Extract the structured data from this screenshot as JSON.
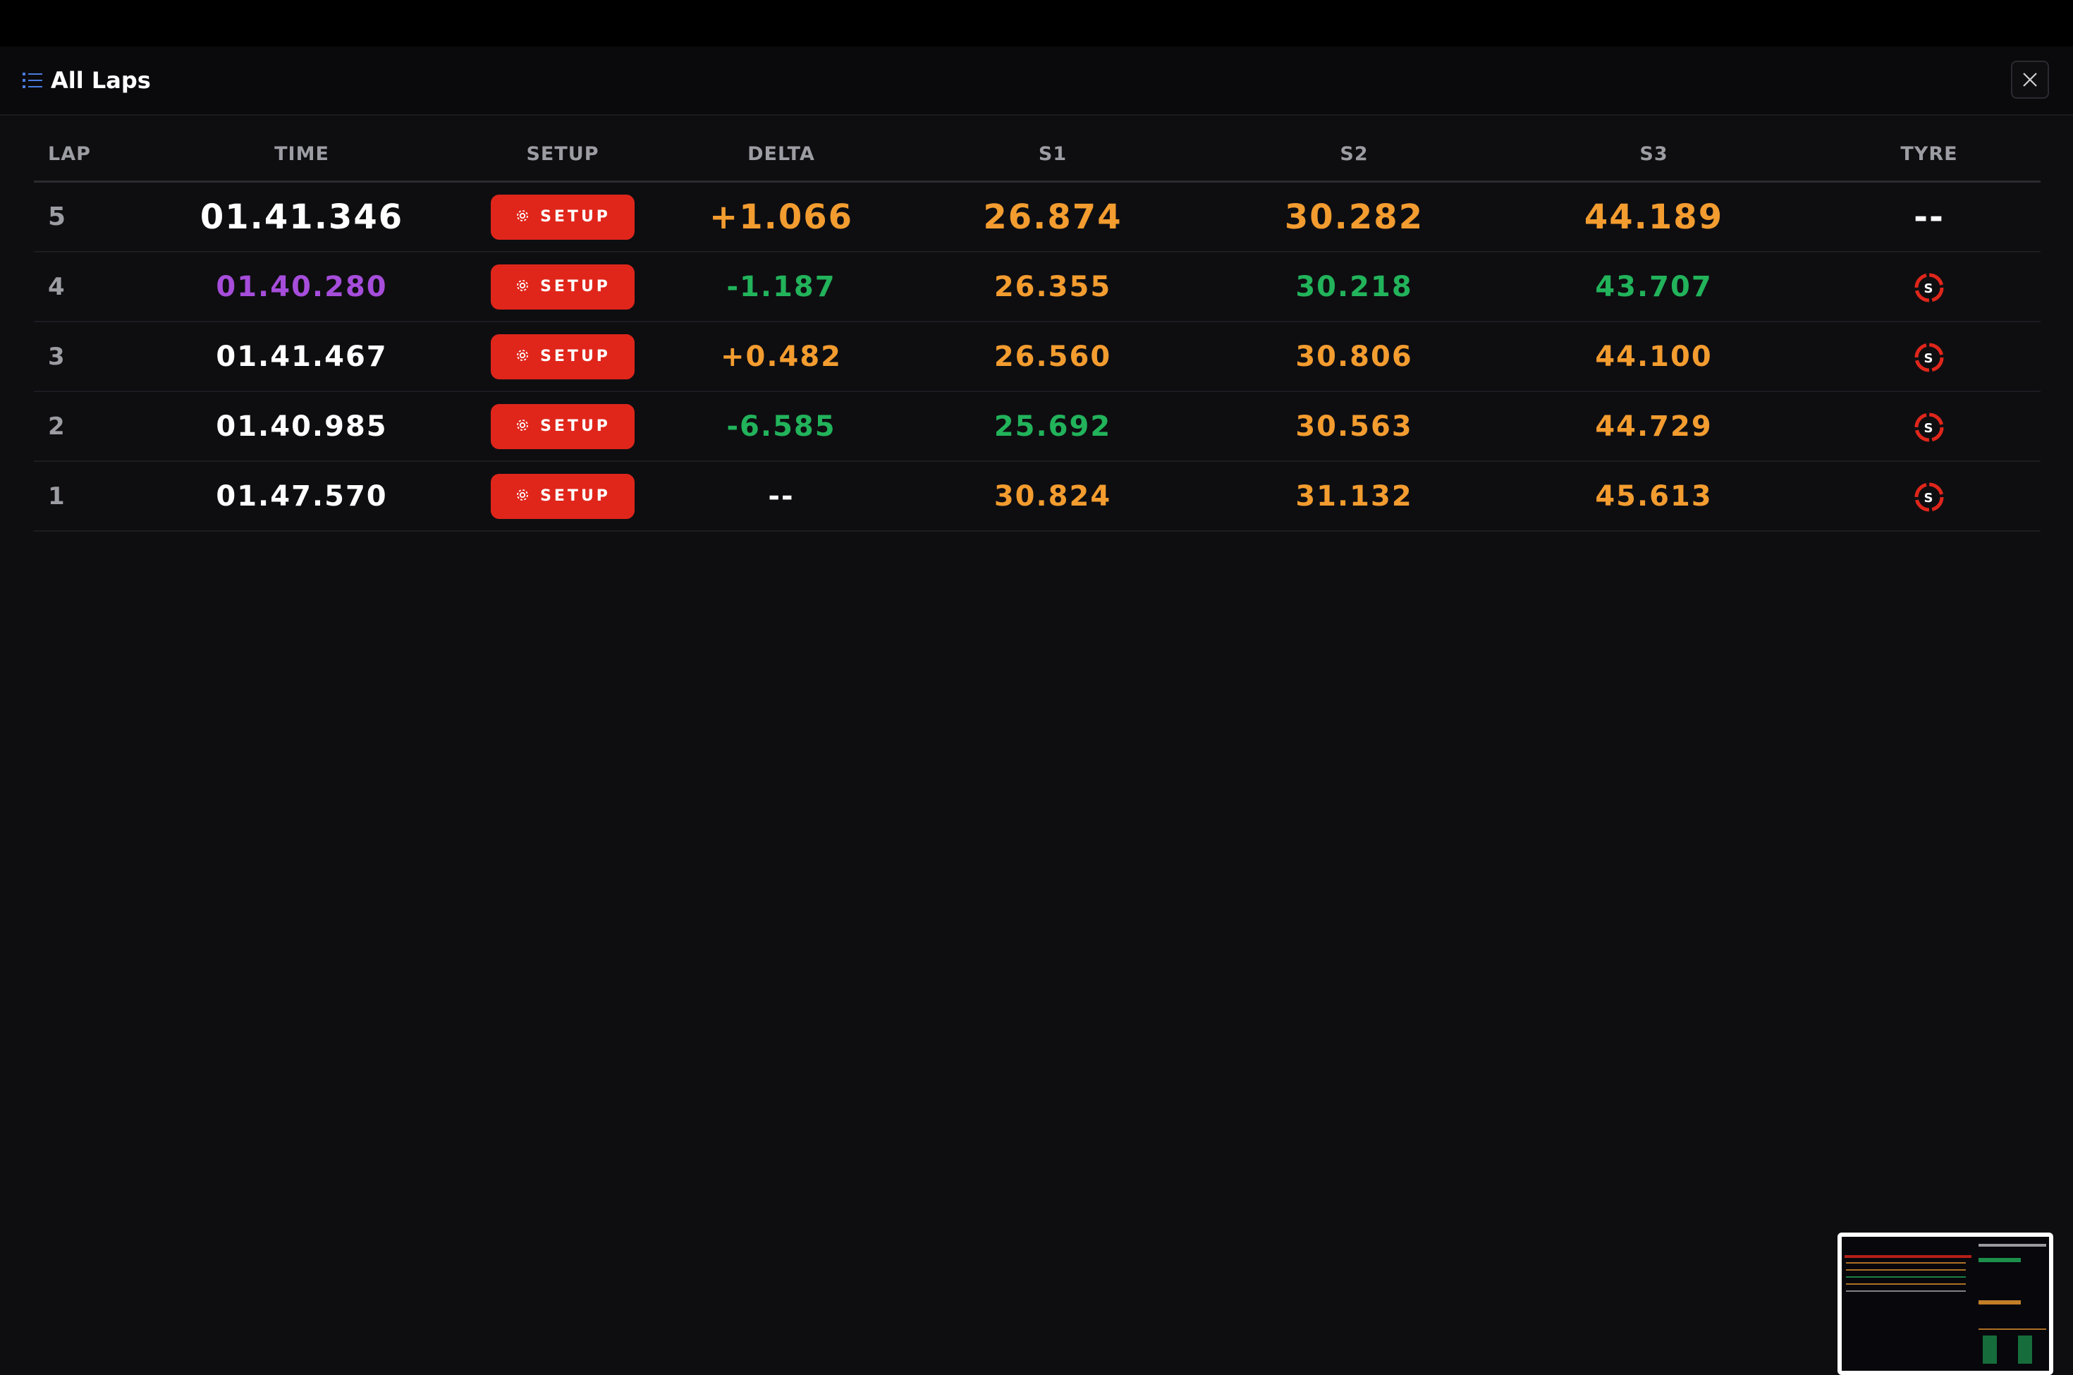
{
  "header": {
    "title": "All Laps"
  },
  "colors": {
    "accent_red": "#e0261b",
    "orange": "#f39c2f",
    "green": "#22b35b",
    "purple": "#a64ddb",
    "white": "#ffffff",
    "muted": "#9c9ca3"
  },
  "table": {
    "columns": [
      "LAP",
      "TIME",
      "SETUP",
      "DELTA",
      "S1",
      "S2",
      "S3",
      "TYRE"
    ],
    "setup_label": "SETUP",
    "rows": [
      {
        "lap": "5",
        "time": "01.41.346",
        "time_color": "#ffffff",
        "delta": "+1.066",
        "delta_color": "#f39c2f",
        "s1": "26.874",
        "s1_color": "#f39c2f",
        "s2": "30.282",
        "s2_color": "#f39c2f",
        "s3": "44.189",
        "s3_color": "#f39c2f",
        "tyre": "--"
      },
      {
        "lap": "4",
        "time": "01.40.280",
        "time_color": "#a64ddb",
        "delta": "-1.187",
        "delta_color": "#22b35b",
        "s1": "26.355",
        "s1_color": "#f39c2f",
        "s2": "30.218",
        "s2_color": "#22b35b",
        "s3": "43.707",
        "s3_color": "#22b35b",
        "tyre": "S"
      },
      {
        "lap": "3",
        "time": "01.41.467",
        "time_color": "#ffffff",
        "delta": "+0.482",
        "delta_color": "#f39c2f",
        "s1": "26.560",
        "s1_color": "#f39c2f",
        "s2": "30.806",
        "s2_color": "#f39c2f",
        "s3": "44.100",
        "s3_color": "#f39c2f",
        "tyre": "S"
      },
      {
        "lap": "2",
        "time": "01.40.985",
        "time_color": "#ffffff",
        "delta": "-6.585",
        "delta_color": "#22b35b",
        "s1": "25.692",
        "s1_color": "#22b35b",
        "s2": "30.563",
        "s2_color": "#f39c2f",
        "s3": "44.729",
        "s3_color": "#f39c2f",
        "tyre": "S"
      },
      {
        "lap": "1",
        "time": "01.47.570",
        "time_color": "#ffffff",
        "delta": "--",
        "delta_color": "#ffffff",
        "s1": "30.824",
        "s1_color": "#f39c2f",
        "s2": "31.132",
        "s2_color": "#f39c2f",
        "s3": "45.613",
        "s3_color": "#f39c2f",
        "tyre": "S"
      }
    ]
  },
  "icons": {
    "header": "list-icon",
    "close": "close-icon",
    "setup": "gear-icon",
    "tyre": "soft-tyre-icon"
  }
}
